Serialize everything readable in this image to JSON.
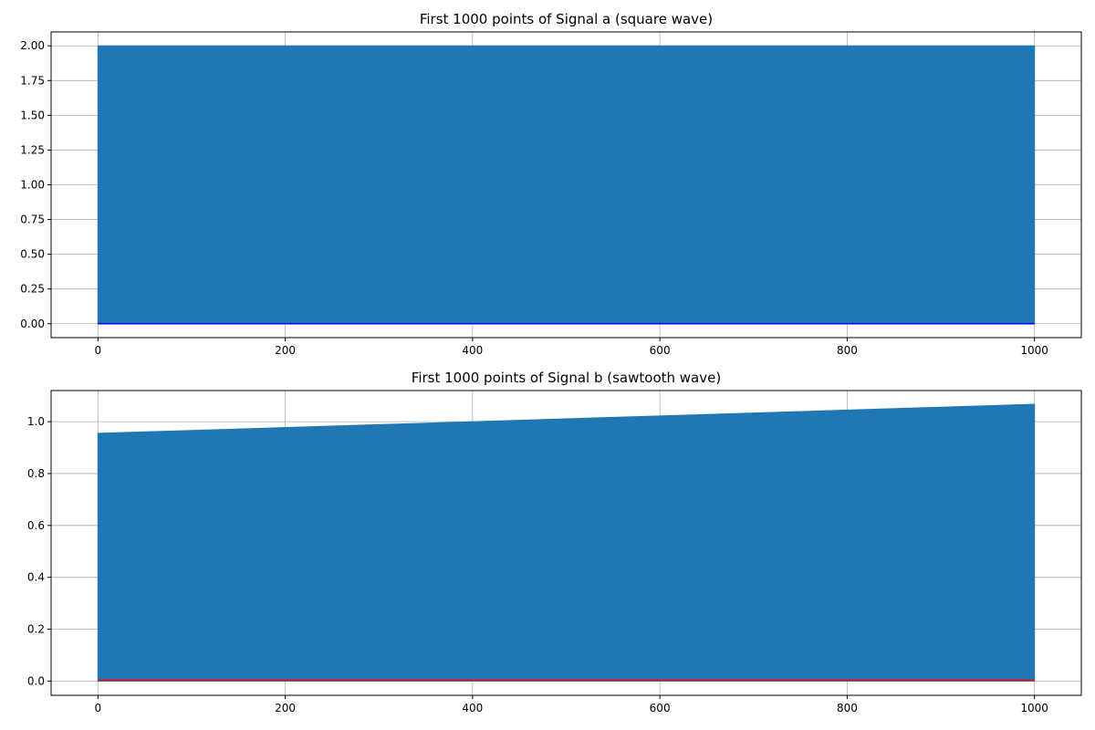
{
  "chart_data": [
    {
      "type": "area",
      "title": "First 1000 points of Signal a (square wave)",
      "xlabel": "",
      "ylabel": "",
      "xlim": [
        -50,
        1050
      ],
      "ylim": [
        -0.1,
        2.1
      ],
      "xticks": [
        0,
        200,
        400,
        600,
        800,
        1000
      ],
      "xtick_labels": [
        "0",
        "200",
        "400",
        "600",
        "800",
        "1000"
      ],
      "yticks": [
        0.0,
        0.25,
        0.5,
        0.75,
        1.0,
        1.25,
        1.5,
        1.75,
        2.0
      ],
      "ytick_labels": [
        "0.00",
        "0.25",
        "0.50",
        "0.75",
        "1.00",
        "1.25",
        "1.50",
        "1.75",
        "2.00"
      ],
      "grid": true,
      "fill": {
        "color": "#1f77b4",
        "x": [
          0,
          1000
        ],
        "upper": [
          2.0,
          2.0
        ],
        "lower": [
          0.0,
          0.0
        ]
      },
      "line": {
        "color": "#0000ff",
        "x": [
          0,
          1000
        ],
        "y": [
          0.0,
          0.0
        ]
      }
    },
    {
      "type": "area",
      "title": "First 1000 points of Signal b (sawtooth wave)",
      "xlabel": "",
      "ylabel": "",
      "xlim": [
        -50,
        1050
      ],
      "ylim": [
        -0.055,
        1.12
      ],
      "xticks": [
        0,
        200,
        400,
        600,
        800,
        1000
      ],
      "xtick_labels": [
        "0",
        "200",
        "400",
        "600",
        "800",
        "1000"
      ],
      "yticks": [
        0.0,
        0.2,
        0.4,
        0.6,
        0.8,
        1.0
      ],
      "ytick_labels": [
        "0.0",
        "0.2",
        "0.4",
        "0.6",
        "0.8",
        "1.0"
      ],
      "grid": true,
      "fill": {
        "color": "#1f77b4",
        "x": [
          0,
          1000
        ],
        "upper": [
          0.955,
          1.067
        ],
        "lower": [
          0.0,
          0.0
        ]
      },
      "line": {
        "color": "#ff0000",
        "x": [
          0,
          1000
        ],
        "y": [
          0.003,
          0.003
        ]
      }
    }
  ]
}
